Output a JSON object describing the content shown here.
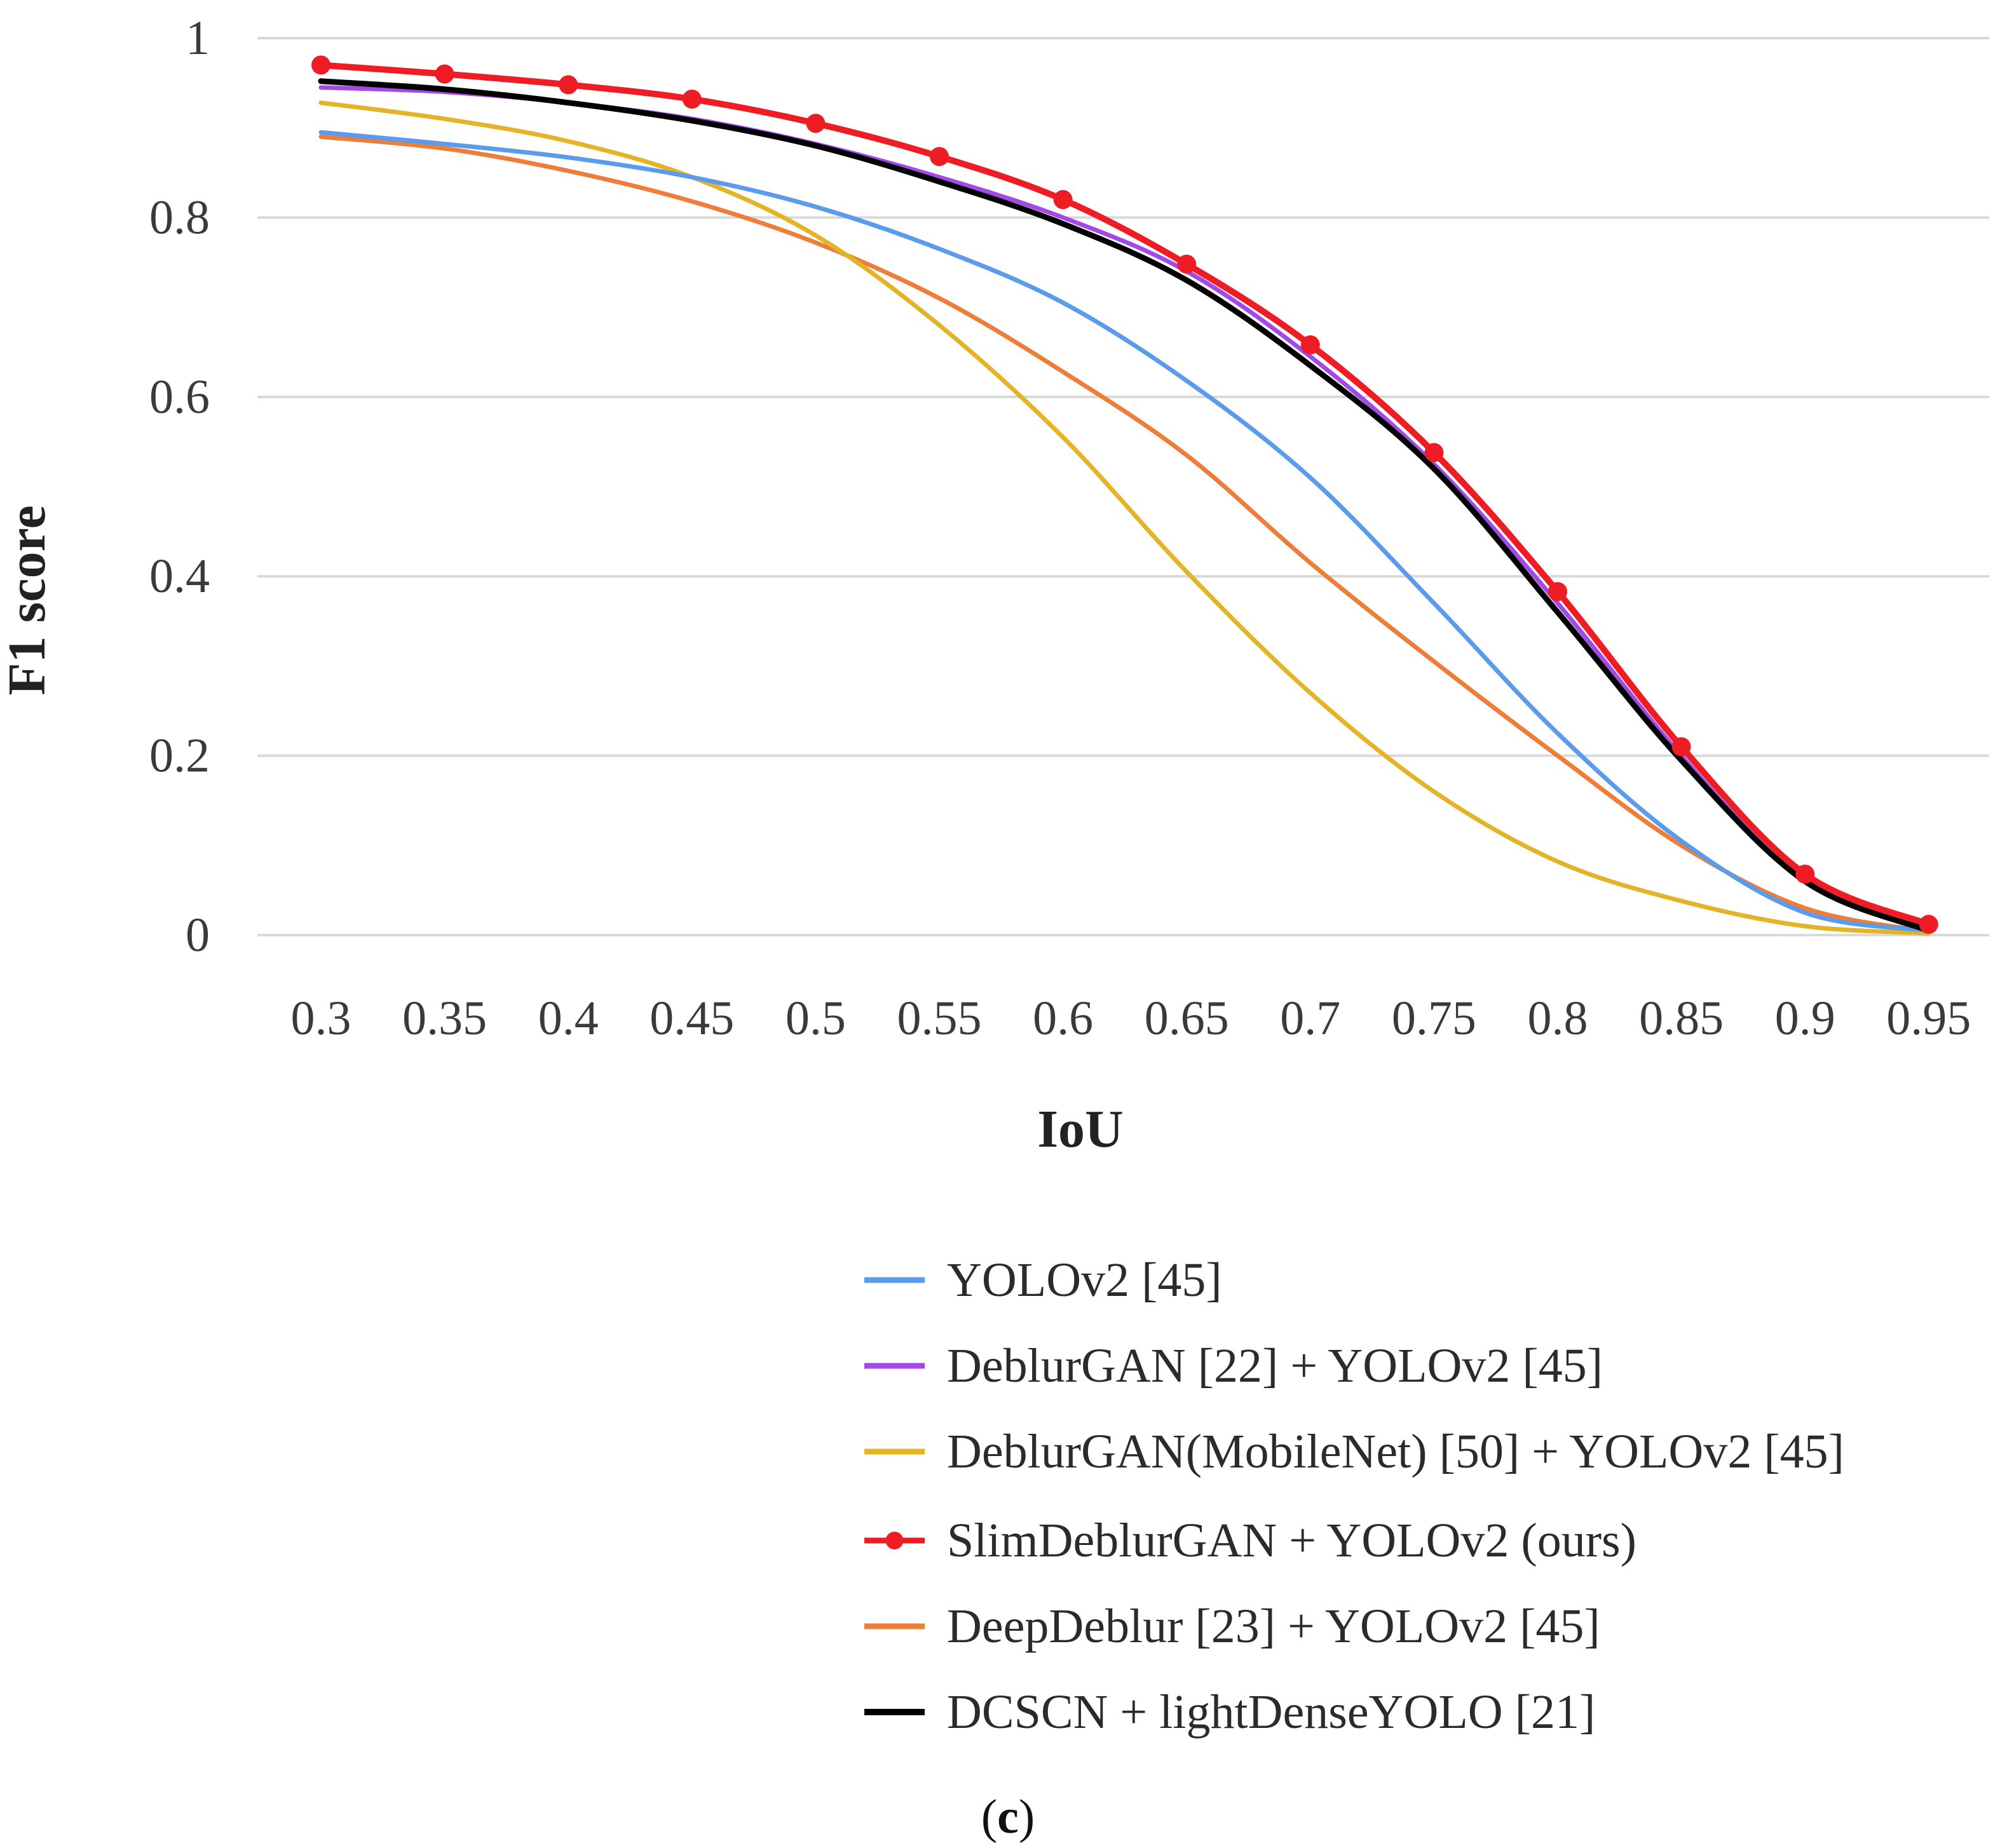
{
  "chart_data": {
    "type": "line",
    "title": "",
    "xlabel": "IoU",
    "ylabel": "F1 score",
    "x": [
      0.3,
      0.35,
      0.4,
      0.45,
      0.5,
      0.55,
      0.6,
      0.65,
      0.7,
      0.75,
      0.8,
      0.85,
      0.9,
      0.95
    ],
    "x_tick_labels": [
      "0.3",
      "0.35",
      "0.4",
      "0.45",
      "0.5",
      "0.55",
      "0.6",
      "0.65",
      "0.7",
      "0.75",
      "0.8",
      "0.85",
      "0.9",
      "0.95"
    ],
    "y_ticks": [
      0,
      0.2,
      0.4,
      0.6,
      0.8,
      1
    ],
    "y_tick_labels": [
      "0",
      "0.2",
      "0.4",
      "0.6",
      "0.8",
      "1"
    ],
    "ylim": [
      0,
      1
    ],
    "grid": true,
    "legend_position": "bottom",
    "series": [
      {
        "name": "YOLOv2 [45]",
        "color": "#5b9bec",
        "marker": false,
        "values": [
          0.895,
          0.882,
          0.867,
          0.845,
          0.812,
          0.765,
          0.705,
          0.618,
          0.51,
          0.37,
          0.225,
          0.105,
          0.025,
          0.005
        ]
      },
      {
        "name": "DeblurGAN [22] + YOLOv2 [45]",
        "color": "#a349e8",
        "marker": false,
        "values": [
          0.945,
          0.94,
          0.928,
          0.91,
          0.882,
          0.845,
          0.8,
          0.74,
          0.645,
          0.525,
          0.37,
          0.2,
          0.06,
          0.006
        ]
      },
      {
        "name": "DeblurGAN(MobileNet) [50] + YOLOv2 [45]",
        "color": "#e3b427",
        "marker": false,
        "values": [
          0.928,
          0.91,
          0.885,
          0.845,
          0.78,
          0.68,
          0.555,
          0.405,
          0.27,
          0.16,
          0.082,
          0.038,
          0.01,
          0.002
        ]
      },
      {
        "name": "SlimDeblurGAN + YOLOv2 (ours)",
        "color": "#ee1c24",
        "marker": true,
        "values": [
          0.97,
          0.96,
          0.948,
          0.932,
          0.905,
          0.868,
          0.82,
          0.748,
          0.658,
          0.538,
          0.383,
          0.21,
          0.068,
          0.012
        ]
      },
      {
        "name": "DeepDeblur [23] + YOLOv2 [45]",
        "color": "#ef7d3a",
        "marker": false,
        "values": [
          0.89,
          0.877,
          0.852,
          0.818,
          0.772,
          0.71,
          0.628,
          0.535,
          0.415,
          0.305,
          0.2,
          0.1,
          0.03,
          0.004
        ]
      },
      {
        "name": "DCSCN + lightDenseYOLO [21]",
        "color": "#000000",
        "marker": false,
        "values": [
          0.952,
          0.943,
          0.928,
          0.908,
          0.88,
          0.84,
          0.793,
          0.73,
          0.635,
          0.52,
          0.36,
          0.195,
          0.06,
          0.005
        ]
      }
    ]
  },
  "caption": {
    "open": "(",
    "letter": "c",
    "close": ")"
  }
}
